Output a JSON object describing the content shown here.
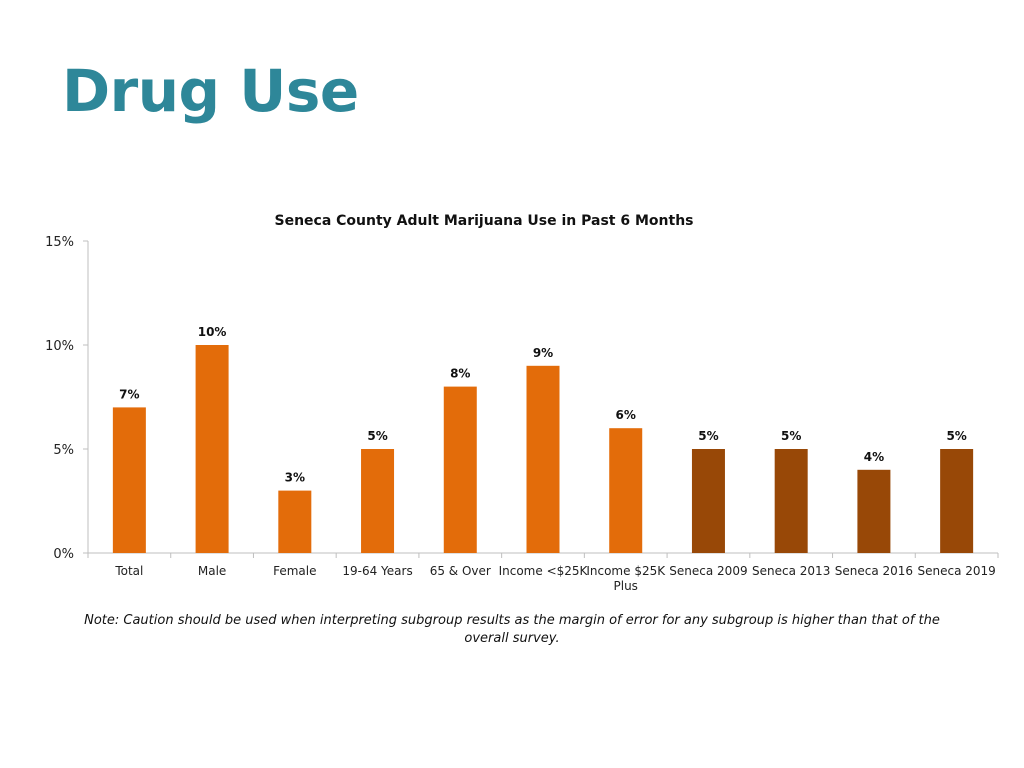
{
  "slide": {
    "title": "Drug Use",
    "note": "Note: Caution should be used when interpreting subgroup results as the margin of error for any subgroup is higher than that of the overall survey."
  },
  "colors": {
    "title": "#2e8799",
    "bar_primary": "#e36c0a",
    "bar_trend": "#984807"
  },
  "chart_data": {
    "type": "bar",
    "title": "Seneca County Adult Marijuana Use in Past 6 Months",
    "xlabel": "",
    "ylabel": "",
    "ylim": [
      0,
      15
    ],
    "yticks": [
      "0%",
      "5%",
      "10%",
      "15%"
    ],
    "ytick_values": [
      0,
      5,
      10,
      15
    ],
    "grid": false,
    "legend": "none",
    "categories": [
      "Total",
      "Male",
      "Female",
      "19-64 Years",
      "65 & Over",
      "Income <$25K",
      "Income $25K Plus",
      "Seneca 2009",
      "Seneca 2013",
      "Seneca 2016",
      "Seneca 2019"
    ],
    "category_lines": [
      [
        "Total"
      ],
      [
        "Male"
      ],
      [
        "Female"
      ],
      [
        "19-64 Years"
      ],
      [
        "65 & Over"
      ],
      [
        "Income <$25K"
      ],
      [
        "Income $25K",
        "Plus"
      ],
      [
        "Seneca 2009"
      ],
      [
        "Seneca 2013"
      ],
      [
        "Seneca 2016"
      ],
      [
        "Seneca 2019"
      ]
    ],
    "values": [
      7,
      10,
      3,
      5,
      8,
      9,
      6,
      5,
      5,
      4,
      5
    ],
    "data_labels": [
      "7%",
      "10%",
      "3%",
      "5%",
      "8%",
      "9%",
      "6%",
      "5%",
      "5%",
      "4%",
      "5%"
    ],
    "bar_colors": [
      "#e36c0a",
      "#e36c0a",
      "#e36c0a",
      "#e36c0a",
      "#e36c0a",
      "#e36c0a",
      "#e36c0a",
      "#984807",
      "#984807",
      "#984807",
      "#984807"
    ]
  }
}
